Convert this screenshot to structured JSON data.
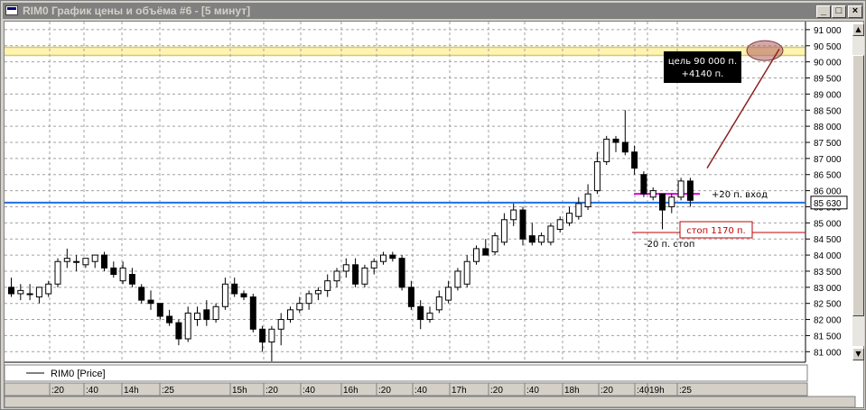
{
  "window": {
    "title": "RIM0 График цены и объёма #6 - [5 минут]",
    "buttons": {
      "minimize": "_",
      "maximize": "□",
      "close": "×"
    }
  },
  "legend": {
    "label": "RIM0 [Price]"
  },
  "annotations": {
    "target_line1": "цель 90 000 п.",
    "target_line2": "+4140 п.",
    "entry": "+20 п. вход",
    "stop_box": "стоп 1170 п.",
    "stop_small": "-20 п. стоп"
  },
  "colors": {
    "up": "#ffffff",
    "down": "#000000",
    "wick": "#000000",
    "grid": "#a0a0a0",
    "target_band": "#fff4b0",
    "target_line": "#d8c870",
    "blue_line": "#1f6fe0",
    "entry_line": "#e000e0",
    "stop_line": "#c00000",
    "target_ellipse": "#b06060",
    "arrow": "#8b2020"
  },
  "chart_data": {
    "type": "candlestick",
    "symbol": "RIM0",
    "timeframe": "5 минут",
    "y_ticks": [
      81000,
      81500,
      82000,
      82500,
      83000,
      83500,
      84000,
      84500,
      85000,
      85500,
      86000,
      86500,
      87000,
      87500,
      88000,
      88500,
      89000,
      89500,
      90000,
      90500,
      91000
    ],
    "y_tick_labels": [
      "81 000",
      "81 500",
      "82 000",
      "82 500",
      "83 000",
      "83 500",
      "84 000",
      "84 500",
      "85 000",
      "85 500",
      "86 000",
      "86 500",
      "87 000",
      "87 500",
      "88 000",
      "88 500",
      "89 000",
      "89 500",
      "90 000",
      "90 500",
      "91 000"
    ],
    "ylim": [
      80800,
      91200
    ],
    "x_labels": [
      ":20",
      ":40",
      "14h",
      ":25",
      "15h",
      ":20",
      ":40",
      "16h",
      ":20",
      ":40",
      "17h",
      ":20",
      ":40",
      "18h",
      ":20",
      ":40",
      "19h",
      ":25"
    ],
    "current_price_label": "85 630",
    "current_price": 85630,
    "target_price": 90300,
    "entry_price": 85900,
    "stop_price": 84700,
    "candles": [
      {
        "o": 83000,
        "h": 83300,
        "l": 82700,
        "c": 82800
      },
      {
        "o": 82800,
        "h": 83100,
        "l": 82600,
        "c": 82900
      },
      {
        "o": 82800,
        "h": 83100,
        "l": 82600,
        "c": 82800
      },
      {
        "o": 82700,
        "h": 83000,
        "l": 82500,
        "c": 83000
      },
      {
        "o": 82800,
        "h": 83200,
        "l": 82700,
        "c": 83100
      },
      {
        "o": 83100,
        "h": 83900,
        "l": 83000,
        "c": 83800
      },
      {
        "o": 83800,
        "h": 84200,
        "l": 83600,
        "c": 83900
      },
      {
        "o": 83800,
        "h": 84000,
        "l": 83500,
        "c": 83800
      },
      {
        "o": 83700,
        "h": 83900,
        "l": 83600,
        "c": 83900
      },
      {
        "o": 83800,
        "h": 84000,
        "l": 83600,
        "c": 84000
      },
      {
        "o": 84000,
        "h": 84100,
        "l": 83500,
        "c": 83600
      },
      {
        "o": 83600,
        "h": 83800,
        "l": 83300,
        "c": 83400
      },
      {
        "o": 83200,
        "h": 83800,
        "l": 83100,
        "c": 83600
      },
      {
        "o": 83400,
        "h": 83600,
        "l": 83000,
        "c": 83100
      },
      {
        "o": 83000,
        "h": 83100,
        "l": 82500,
        "c": 82600
      },
      {
        "o": 82600,
        "h": 82900,
        "l": 82300,
        "c": 82500
      },
      {
        "o": 82500,
        "h": 82500,
        "l": 82000,
        "c": 82100
      },
      {
        "o": 82100,
        "h": 82300,
        "l": 81800,
        "c": 81900
      },
      {
        "o": 81900,
        "h": 82000,
        "l": 81200,
        "c": 81400
      },
      {
        "o": 81400,
        "h": 82400,
        "l": 81300,
        "c": 82200
      },
      {
        "o": 82000,
        "h": 82400,
        "l": 81800,
        "c": 82200
      },
      {
        "o": 82300,
        "h": 82600,
        "l": 81800,
        "c": 82000
      },
      {
        "o": 82000,
        "h": 82500,
        "l": 81900,
        "c": 82400
      },
      {
        "o": 82400,
        "h": 83300,
        "l": 82300,
        "c": 83100
      },
      {
        "o": 83100,
        "h": 83300,
        "l": 82700,
        "c": 82800
      },
      {
        "o": 82800,
        "h": 82900,
        "l": 82600,
        "c": 82700
      },
      {
        "o": 82700,
        "h": 82800,
        "l": 81600,
        "c": 81700
      },
      {
        "o": 81700,
        "h": 81800,
        "l": 81000,
        "c": 81300
      },
      {
        "o": 81300,
        "h": 81800,
        "l": 80700,
        "c": 81700
      },
      {
        "o": 81700,
        "h": 82200,
        "l": 81200,
        "c": 82000
      },
      {
        "o": 82000,
        "h": 82400,
        "l": 81900,
        "c": 82300
      },
      {
        "o": 82300,
        "h": 82700,
        "l": 82200,
        "c": 82500
      },
      {
        "o": 82500,
        "h": 82900,
        "l": 82300,
        "c": 82800
      },
      {
        "o": 82800,
        "h": 83000,
        "l": 82600,
        "c": 82900
      },
      {
        "o": 82900,
        "h": 83400,
        "l": 82700,
        "c": 83200
      },
      {
        "o": 83200,
        "h": 83600,
        "l": 83000,
        "c": 83500
      },
      {
        "o": 83500,
        "h": 83900,
        "l": 83300,
        "c": 83700
      },
      {
        "o": 83700,
        "h": 83900,
        "l": 83000,
        "c": 83100
      },
      {
        "o": 83100,
        "h": 83700,
        "l": 83000,
        "c": 83600
      },
      {
        "o": 83600,
        "h": 83900,
        "l": 83400,
        "c": 83800
      },
      {
        "o": 83800,
        "h": 84100,
        "l": 83700,
        "c": 84000
      },
      {
        "o": 84000,
        "h": 84100,
        "l": 83800,
        "c": 83900
      },
      {
        "o": 83900,
        "h": 84000,
        "l": 82900,
        "c": 83000
      },
      {
        "o": 83000,
        "h": 83200,
        "l": 82300,
        "c": 82400
      },
      {
        "o": 82400,
        "h": 82600,
        "l": 81700,
        "c": 82000
      },
      {
        "o": 82000,
        "h": 82400,
        "l": 81900,
        "c": 82200
      },
      {
        "o": 82300,
        "h": 82900,
        "l": 82200,
        "c": 82700
      },
      {
        "o": 82600,
        "h": 83200,
        "l": 82500,
        "c": 83000
      },
      {
        "o": 83000,
        "h": 83600,
        "l": 82900,
        "c": 83500
      },
      {
        "o": 83100,
        "h": 84000,
        "l": 83000,
        "c": 83800
      },
      {
        "o": 83800,
        "h": 84300,
        "l": 83700,
        "c": 84200
      },
      {
        "o": 84200,
        "h": 84500,
        "l": 84000,
        "c": 84000
      },
      {
        "o": 84100,
        "h": 84700,
        "l": 84000,
        "c": 84600
      },
      {
        "o": 84400,
        "h": 85300,
        "l": 84300,
        "c": 85100
      },
      {
        "o": 85100,
        "h": 85600,
        "l": 84900,
        "c": 85400
      },
      {
        "o": 85400,
        "h": 85500,
        "l": 84300,
        "c": 84500
      },
      {
        "o": 84600,
        "h": 85000,
        "l": 84300,
        "c": 84400
      },
      {
        "o": 84400,
        "h": 84700,
        "l": 84300,
        "c": 84600
      },
      {
        "o": 84400,
        "h": 85000,
        "l": 84300,
        "c": 84900
      },
      {
        "o": 84800,
        "h": 85200,
        "l": 84700,
        "c": 85100
      },
      {
        "o": 85000,
        "h": 85500,
        "l": 84900,
        "c": 85300
      },
      {
        "o": 85200,
        "h": 85800,
        "l": 85100,
        "c": 85600
      },
      {
        "o": 85500,
        "h": 86200,
        "l": 85400,
        "c": 85900
      },
      {
        "o": 86000,
        "h": 87200,
        "l": 85900,
        "c": 86900
      },
      {
        "o": 86900,
        "h": 87700,
        "l": 86800,
        "c": 87600
      },
      {
        "o": 87600,
        "h": 87700,
        "l": 87200,
        "c": 87500
      },
      {
        "o": 87500,
        "h": 88500,
        "l": 87100,
        "c": 87200
      },
      {
        "o": 87200,
        "h": 87400,
        "l": 86500,
        "c": 86700
      },
      {
        "o": 86500,
        "h": 86600,
        "l": 85800,
        "c": 85900
      },
      {
        "o": 85800,
        "h": 86100,
        "l": 85700,
        "c": 86000
      },
      {
        "o": 85900,
        "h": 85900,
        "l": 84800,
        "c": 85400
      },
      {
        "o": 85500,
        "h": 85900,
        "l": 85300,
        "c": 85800
      },
      {
        "o": 85800,
        "h": 86400,
        "l": 85700,
        "c": 86300
      },
      {
        "o": 86300,
        "h": 86400,
        "l": 85500,
        "c": 85700
      }
    ]
  }
}
